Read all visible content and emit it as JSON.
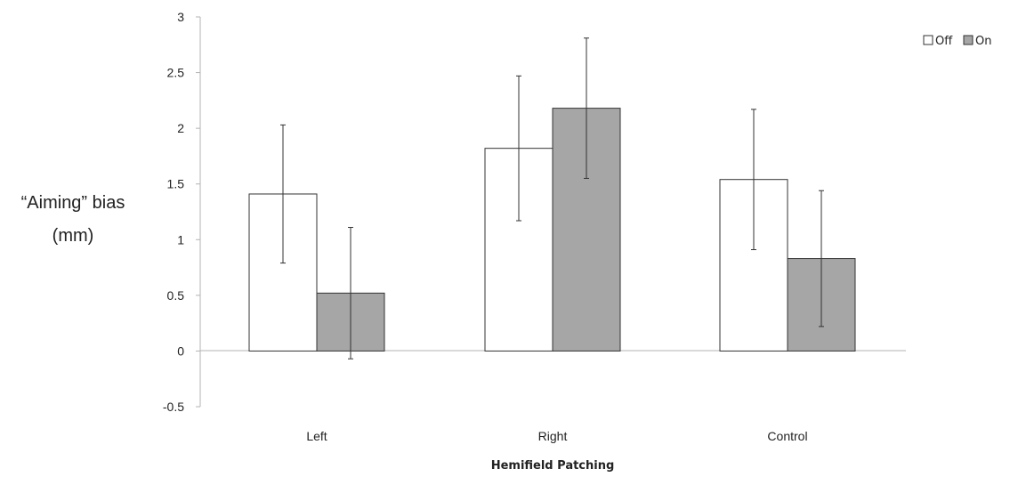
{
  "chart_data": {
    "type": "bar",
    "categories": [
      "Left",
      "Right",
      "Control"
    ],
    "series": [
      {
        "name": "Off",
        "values": [
          1.41,
          1.82,
          1.54
        ],
        "errors": [
          0.62,
          0.65,
          0.63
        ],
        "color": "#ffffff"
      },
      {
        "name": "On",
        "values": [
          0.52,
          2.18,
          0.83
        ],
        "errors": [
          0.59,
          0.63,
          0.61
        ],
        "color": "#a6a6a6"
      }
    ],
    "xlabel": "Hemifield Patching",
    "ylabel_lines": [
      "“Aiming” bias",
      "(mm)"
    ],
    "ylim": [
      -0.5,
      3
    ],
    "yticks": [
      "-0.5",
      "0",
      "0.5",
      "1",
      "1.5",
      "2",
      "2.5",
      "3"
    ],
    "grid": false,
    "legend_position": "top-right"
  }
}
